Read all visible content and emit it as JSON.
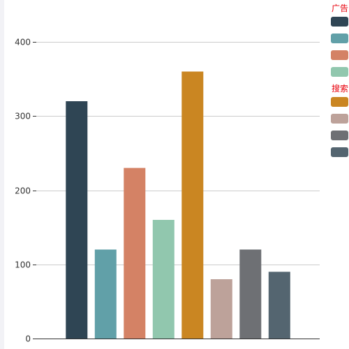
{
  "chart_data": {
    "type": "bar",
    "title": "",
    "xlabel": "",
    "ylabel": "",
    "ylim": [
      0,
      400
    ],
    "yticks": [
      0,
      100,
      200,
      300,
      400
    ],
    "grid": true,
    "legend_placement": "top-right",
    "series": [
      {
        "value": 320,
        "color": "#2f4554",
        "group": "广告"
      },
      {
        "value": 120,
        "color": "#61a0a8",
        "group": "广告"
      },
      {
        "value": 230,
        "color": "#d48265",
        "group": "广告"
      },
      {
        "value": 160,
        "color": "#91c7ae",
        "group": "广告"
      },
      {
        "value": 360,
        "color": "#ca8622",
        "group": "搜索"
      },
      {
        "value": 80,
        "color": "#bda29a",
        "group": "搜索"
      },
      {
        "value": 120,
        "color": "#6e7074",
        "group": "搜索"
      },
      {
        "value": 90,
        "color": "#546570",
        "group": "搜索"
      }
    ],
    "legend_groups": [
      {
        "title": "广告",
        "items": [
          0,
          1,
          2,
          3
        ]
      },
      {
        "title": "搜索",
        "items": [
          4,
          5,
          6,
          7
        ]
      }
    ]
  },
  "colors": {
    "grid": "#cccccc",
    "axis": "#333333",
    "legend_title": "#e8000b"
  }
}
